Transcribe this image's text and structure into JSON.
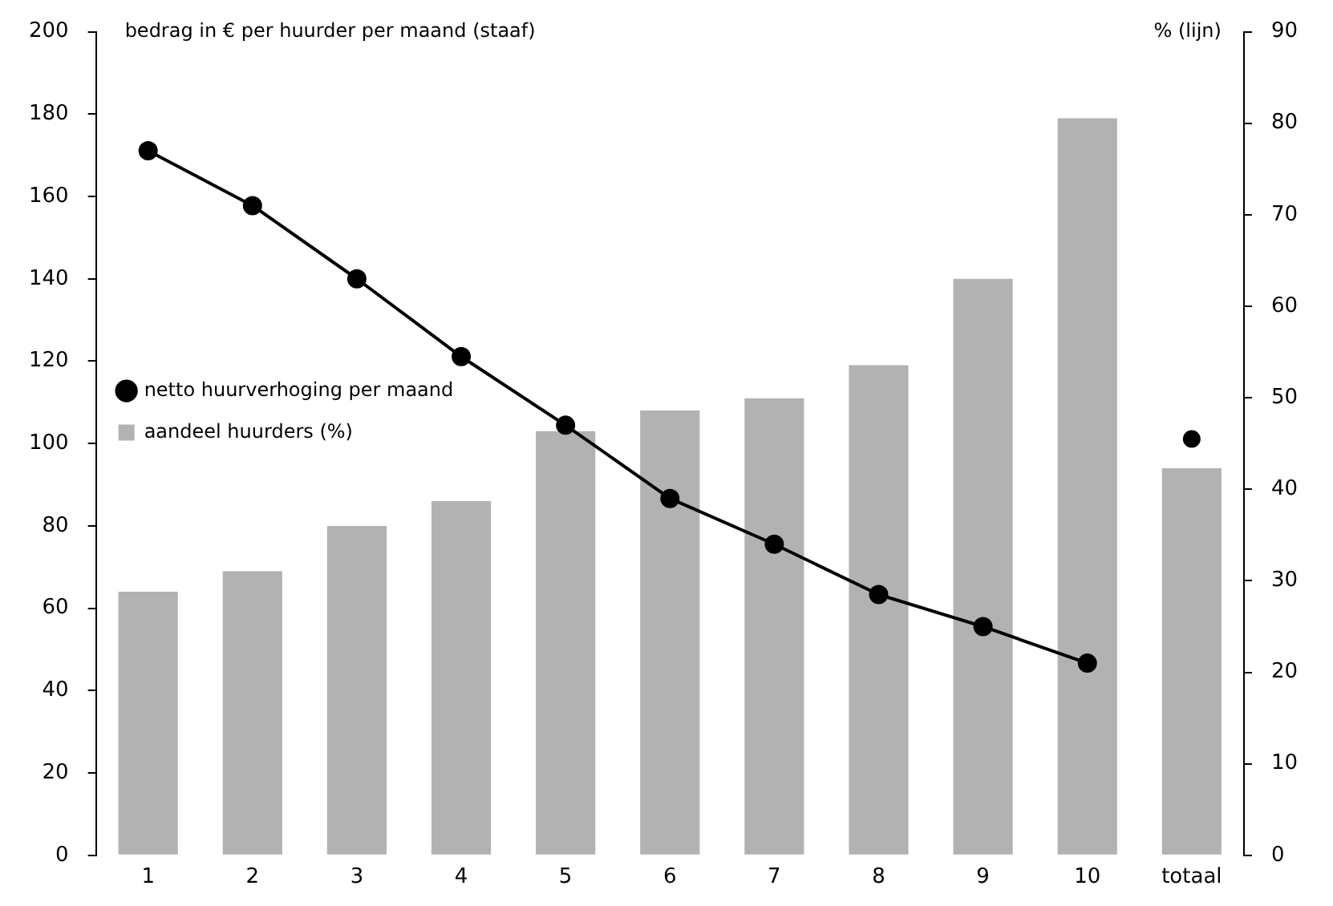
{
  "chart_data": {
    "type": "bar",
    "ylabel": "bedrag in € per huurder per maand (staaf)",
    "y2label": "% (lijn)",
    "categories": [
      "1",
      "2",
      "3",
      "4",
      "5",
      "6",
      "7",
      "8",
      "9",
      "10",
      "totaal"
    ],
    "series": [
      {
        "name": "netto huurverhoging per maand",
        "type": "line",
        "axis": "y2",
        "color": "#000000",
        "marker": "circle",
        "values": [
          77,
          71,
          63,
          54.5,
          47,
          39,
          34,
          28.5,
          25,
          21,
          null
        ]
      },
      {
        "name": "aandeel huurders (%)",
        "type": "bar",
        "color": "#b2b2b2",
        "values": [
          64,
          69,
          80,
          86,
          103,
          108,
          111,
          119,
          140,
          179,
          94
        ]
      },
      {
        "type": "scatter",
        "axis": "y2",
        "color": "#000000",
        "marker": "circle",
        "x": [
          "totaal"
        ],
        "values": [
          45.5
        ]
      }
    ],
    "ylim": [
      0,
      200
    ],
    "yticks": [
      0,
      20,
      40,
      60,
      80,
      100,
      120,
      140,
      160,
      180,
      200
    ],
    "y2lim": [
      0,
      90
    ],
    "y2ticks": [
      0,
      10,
      20,
      30,
      40,
      50,
      60,
      70,
      80,
      90
    ],
    "grid": false,
    "legend": "top"
  }
}
